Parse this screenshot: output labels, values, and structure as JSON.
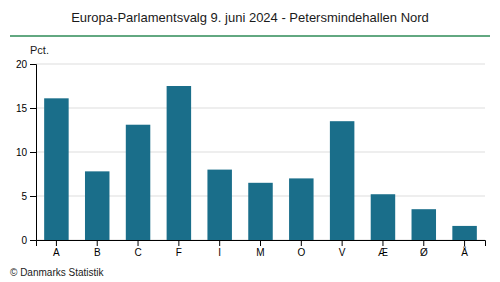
{
  "chart_data": {
    "type": "bar",
    "title": "Europa-Parlamentsvalg 9. juni 2024 - Petersmindehallen Nord",
    "ylabel": "Pct.",
    "footnote": "© Danmarks Statistik",
    "categories": [
      "A",
      "B",
      "C",
      "F",
      "I",
      "M",
      "O",
      "V",
      "Æ",
      "Ø",
      "Å"
    ],
    "values": [
      16.1,
      7.8,
      13.1,
      17.5,
      8.0,
      6.5,
      7.0,
      13.5,
      5.2,
      3.5,
      1.6
    ],
    "color": "#1a6e8a",
    "ylim": [
      0,
      20
    ],
    "yticks": [
      0,
      5,
      10,
      15,
      20
    ],
    "grid": true
  }
}
